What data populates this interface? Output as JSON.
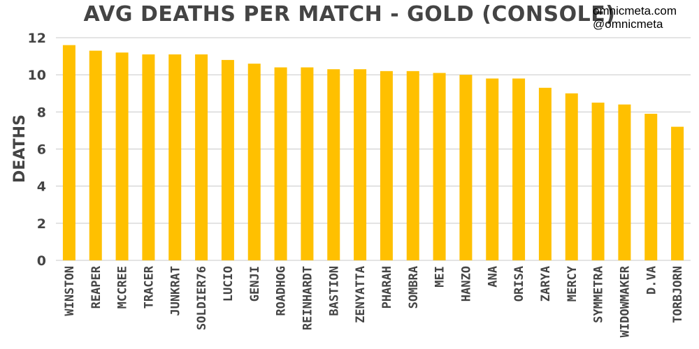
{
  "brand": {
    "site": "omnicmeta.com",
    "handle": "@omnicmeta"
  },
  "chart_data": {
    "type": "bar",
    "title": "AVG DEATHS PER MATCH - GOLD (CONSOLE)",
    "xlabel": "",
    "ylabel": "DEATHS",
    "ylim": [
      0,
      12
    ],
    "yticks": [
      0,
      2,
      4,
      6,
      8,
      10,
      12
    ],
    "grid": true,
    "bar_color": "#ffc000",
    "categories": [
      "WINSTON",
      "REAPER",
      "MCCREE",
      "TRACER",
      "JUNKRAT",
      "SOLDIER76",
      "LUCIO",
      "GENJI",
      "ROADHOG",
      "REINHARDT",
      "BASTION",
      "ZENYATTA",
      "PHARAH",
      "SOMBRA",
      "MEI",
      "HANZO",
      "ANA",
      "ORISA",
      "ZARYA",
      "MERCY",
      "SYMMETRA",
      "WIDOWMAKER",
      "D.VA",
      "TORBJORN"
    ],
    "values": [
      11.6,
      11.3,
      11.2,
      11.1,
      11.1,
      11.1,
      10.8,
      10.6,
      10.4,
      10.4,
      10.3,
      10.3,
      10.2,
      10.2,
      10.1,
      10.0,
      9.8,
      9.8,
      9.3,
      9.0,
      8.5,
      8.4,
      7.9,
      7.2
    ]
  }
}
